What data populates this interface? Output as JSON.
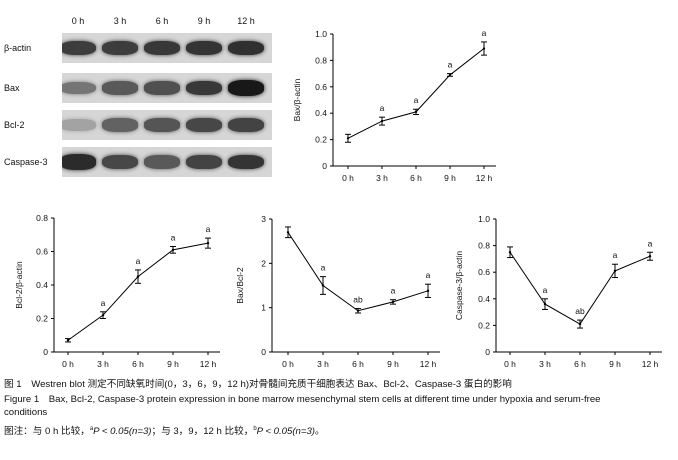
{
  "blot": {
    "lanes": [
      "0 h",
      "3 h",
      "6 h",
      "9 h",
      "12 h"
    ],
    "proteins": [
      {
        "label": "β-actin",
        "intensity": [
          0.75,
          0.75,
          0.78,
          0.8,
          0.82
        ]
      },
      {
        "label": "Bax",
        "intensity": [
          0.45,
          0.6,
          0.65,
          0.78,
          0.95
        ]
      },
      {
        "label": "Bcl-2",
        "intensity": [
          0.2,
          0.55,
          0.62,
          0.7,
          0.72
        ]
      },
      {
        "label": "Caspase-3",
        "intensity": [
          0.85,
          0.7,
          0.6,
          0.72,
          0.8
        ]
      }
    ]
  },
  "chart_data": [
    {
      "type": "line",
      "ylabel": "Bax/β-actin",
      "categories": [
        "0 h",
        "3 h",
        "6 h",
        "9 h",
        "12 h"
      ],
      "values": [
        0.21,
        0.34,
        0.41,
        0.69,
        0.89
      ],
      "errors": [
        0.03,
        0.03,
        0.02,
        0.01,
        0.05
      ],
      "annotations": [
        "",
        "a",
        "a",
        "a",
        "a"
      ],
      "ylim": [
        0,
        1.0
      ],
      "yticks": [
        "0",
        "0.2",
        "0.4",
        "0.6",
        "0.8",
        "1.0"
      ]
    },
    {
      "type": "line",
      "ylabel": "Bcl-2/β-actin",
      "categories": [
        "0 h",
        "3 h",
        "6 h",
        "9 h",
        "12 h"
      ],
      "values": [
        0.07,
        0.22,
        0.45,
        0.61,
        0.65
      ],
      "errors": [
        0.01,
        0.02,
        0.04,
        0.02,
        0.03
      ],
      "annotations": [
        "",
        "a",
        "a",
        "a",
        "a"
      ],
      "ylim": [
        0,
        0.8
      ],
      "yticks": [
        "0",
        "0.2",
        "0.4",
        "0.6",
        "0.8"
      ]
    },
    {
      "type": "line",
      "ylabel": "Bax/Bcl-2",
      "categories": [
        "0 h",
        "3 h",
        "6 h",
        "9 h",
        "12 h"
      ],
      "values": [
        2.7,
        1.5,
        0.93,
        1.13,
        1.38
      ],
      "errors": [
        0.12,
        0.2,
        0.05,
        0.05,
        0.15
      ],
      "annotations": [
        "",
        "a",
        "ab",
        "a",
        "a"
      ],
      "ylim": [
        0,
        3
      ],
      "yticks": [
        "0",
        "1",
        "2",
        "3"
      ]
    },
    {
      "type": "line",
      "ylabel": "Caspase-3/β-actin",
      "categories": [
        "0 h",
        "3 h",
        "6 h",
        "9 h",
        "12 h"
      ],
      "values": [
        0.75,
        0.36,
        0.21,
        0.61,
        0.72
      ],
      "errors": [
        0.04,
        0.04,
        0.03,
        0.05,
        0.03
      ],
      "annotations": [
        "",
        "a",
        "ab",
        "a",
        "a"
      ],
      "ylim": [
        0,
        1.0
      ],
      "yticks": [
        "0",
        "0.2",
        "0.4",
        "0.6",
        "0.8",
        "1.0"
      ]
    }
  ],
  "caption": {
    "zh_title": "图 1　Westren blot 测定不同缺氧时间(0，3，6，9，12 h)对骨髓间充质干细胞表达 Bax、Bcl-2、Caspase-3 蛋白的影响",
    "en_title_line1": "Figure 1　Bax, Bcl-2, Caspase-3 protein expression in bone marrow mesenchymal stem cells at different time under hypoxia and serum-free",
    "en_title_line2": "conditions",
    "note_prefix": "图注：与 0 h 比较，",
    "note_a_sup": "a",
    "note_a_stat": "P < 0.05(n=3)",
    "note_mid": "；与 3，9，12 h 比较，",
    "note_b_sup": "b",
    "note_b_stat": "P < 0.05(n=3)",
    "note_end": "。"
  }
}
